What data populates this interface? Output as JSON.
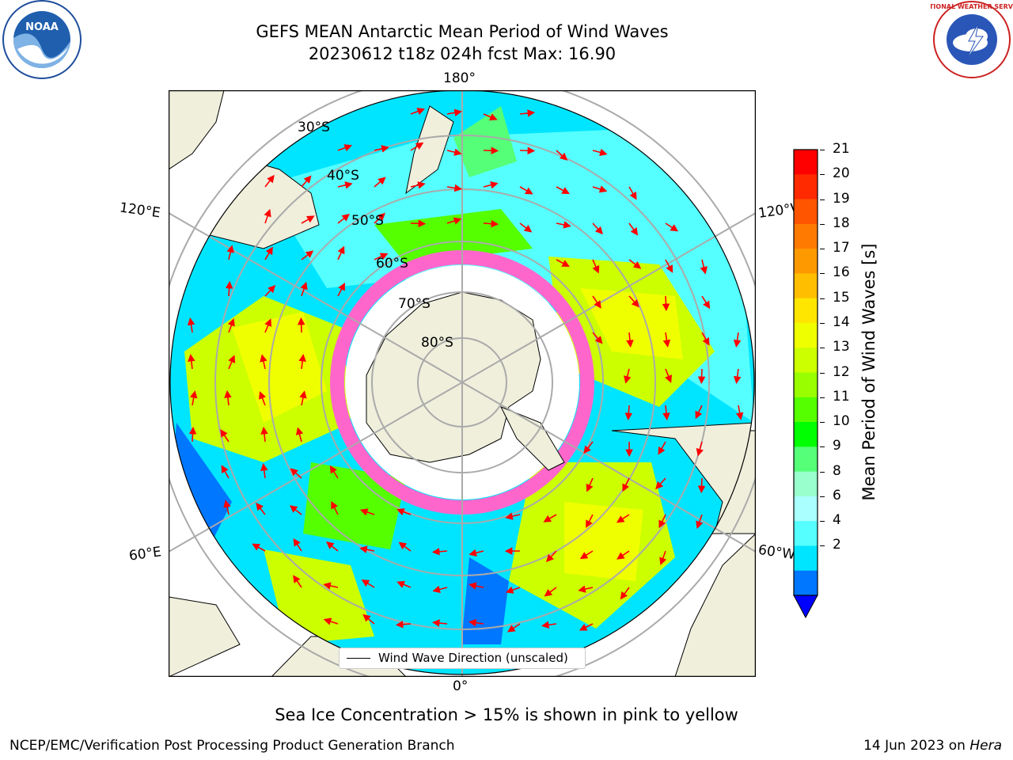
{
  "header": {
    "title_line1": "GEFS MEAN Antarctic Mean Period of Wind Waves",
    "title_line2": "20230612 t18z 024h fcst   Max: 16.90"
  },
  "logos": {
    "left": {
      "icon": "noaa-logo-icon",
      "text": "NOAA"
    },
    "right": {
      "icon": "national-weather-service-logo-icon",
      "text": "NATIONAL WEATHER SERVICE"
    }
  },
  "map": {
    "longitude_labels": {
      "top": "180°",
      "bottom": "0°",
      "left_upper": "120°E",
      "left_lower": "60°E",
      "right_upper": "120°W",
      "right_lower": "60°W"
    },
    "latitude_labels": [
      "30°S",
      "40°S",
      "50°S",
      "60°S",
      "70°S",
      "80°S"
    ],
    "legend": {
      "label": "Wind Wave Direction (unscaled)"
    }
  },
  "colorbar": {
    "label": "Mean Period of Wind Waves [s]",
    "ticks": [
      "21",
      "20",
      "19",
      "18",
      "17",
      "16",
      "15",
      "14",
      "13",
      "12",
      "11",
      "10",
      "9",
      "8",
      "6",
      "4",
      "2"
    ],
    "colors": [
      "#ff0000",
      "#ff2a00",
      "#ff5500",
      "#ff7a00",
      "#ff9900",
      "#ffbf00",
      "#ffe600",
      "#f0ff00",
      "#ccff00",
      "#99ff00",
      "#55ff00",
      "#00ff00",
      "#55ff77",
      "#99ffcc",
      "#aaffff",
      "#55ffff",
      "#00e5ff",
      "#0077ff"
    ],
    "extend_color": "#0000ff"
  },
  "note": "Sea Ice Concentration > 15% is shown in pink to yellow",
  "footer": {
    "left": "NCEP/EMC/Verification Post Processing Product Generation Branch",
    "right_date": "14 Jun 2023 on ",
    "right_machine": "Hera"
  }
}
